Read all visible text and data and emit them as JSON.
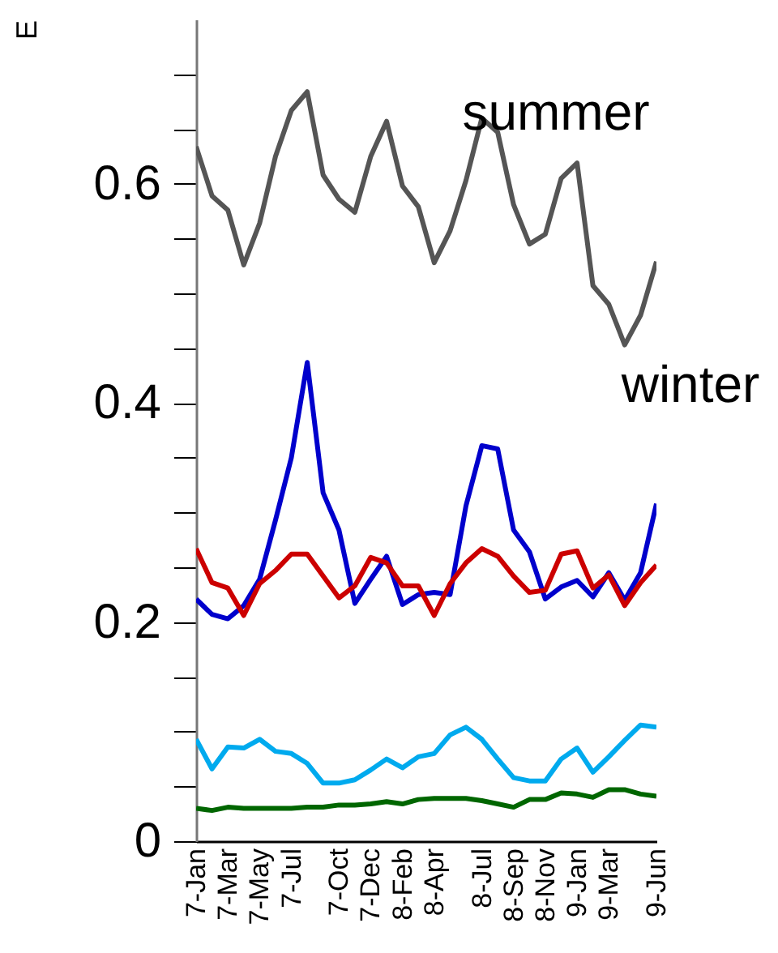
{
  "chart_data": {
    "type": "line",
    "ylabel": "E",
    "categories": [
      "7-Jan",
      null,
      "7-Mar",
      null,
      "7-May",
      null,
      "7-Jul",
      null,
      null,
      "7-Oct",
      null,
      "7-Dec",
      null,
      "8-Feb",
      null,
      "8-Apr",
      null,
      null,
      "8-Jul",
      null,
      "8-Sep",
      null,
      "8-Nov",
      null,
      "9-Jan",
      null,
      "9-Mar",
      null,
      null,
      "9-Jun"
    ],
    "series": [
      {
        "color": "#555555",
        "values": [
          0.634,
          0.589,
          0.576,
          0.526,
          0.564,
          0.625,
          0.667,
          0.684,
          0.608,
          0.586,
          0.574,
          0.625,
          0.657,
          0.598,
          0.579,
          0.528,
          0.557,
          0.603,
          0.66,
          0.647,
          0.581,
          0.545,
          0.554,
          0.605,
          0.619,
          0.507,
          0.49,
          0.453,
          0.48,
          0.529
        ]
      },
      {
        "color": "#0000cc",
        "values": [
          0.221,
          0.207,
          0.203,
          0.215,
          0.239,
          0.293,
          0.35,
          0.437,
          0.318,
          0.284,
          0.217,
          0.239,
          0.26,
          0.216,
          0.225,
          0.227,
          0.225,
          0.306,
          0.361,
          0.358,
          0.284,
          0.264,
          0.221,
          0.232,
          0.238,
          0.223,
          0.245,
          0.22,
          0.245,
          0.308
        ]
      },
      {
        "color": "#cc0000",
        "values": [
          0.267,
          0.236,
          0.231,
          0.206,
          0.235,
          0.247,
          0.262,
          0.262,
          0.242,
          0.222,
          0.233,
          0.259,
          0.254,
          0.233,
          0.233,
          0.206,
          0.235,
          0.254,
          0.267,
          0.26,
          0.242,
          0.227,
          0.229,
          0.262,
          0.265,
          0.231,
          0.243,
          0.215,
          0.236,
          0.252
        ]
      },
      {
        "color": "#00aaee",
        "values": [
          0.093,
          0.066,
          0.086,
          0.085,
          0.093,
          0.082,
          0.08,
          0.071,
          0.053,
          0.053,
          0.056,
          0.065,
          0.075,
          0.067,
          0.077,
          0.08,
          0.097,
          0.104,
          0.093,
          0.075,
          0.058,
          0.055,
          0.055,
          0.075,
          0.085,
          0.063,
          0.077,
          0.092,
          0.106,
          0.104
        ]
      },
      {
        "color": "#006600",
        "values": [
          0.03,
          0.028,
          0.031,
          0.03,
          0.03,
          0.03,
          0.03,
          0.031,
          0.031,
          0.033,
          0.033,
          0.034,
          0.036,
          0.034,
          0.038,
          0.039,
          0.039,
          0.039,
          0.037,
          0.034,
          0.031,
          0.038,
          0.038,
          0.044,
          0.043,
          0.04,
          0.047,
          0.047,
          0.043,
          0.041
        ]
      }
    ],
    "ylim": [
      0,
      0.75
    ],
    "yticks": [
      0,
      {
        "value": 0.05,
        "label": null
      },
      {
        "value": 0.1,
        "label": null
      },
      {
        "value": 0.15,
        "label": null
      },
      0.2,
      {
        "value": 0.25,
        "label": null
      },
      {
        "value": 0.3,
        "label": null
      },
      {
        "value": 0.35,
        "label": null
      },
      0.4,
      {
        "value": 0.45,
        "label": null
      },
      {
        "value": 0.5,
        "label": null
      },
      {
        "value": 0.55,
        "label": null
      },
      0.6,
      {
        "value": 0.65,
        "label": null
      },
      {
        "value": 0.7,
        "label": null
      }
    ],
    "annotations": [
      "summer",
      "winter"
    ],
    "grid": false,
    "marker": "none",
    "line_style": "solid"
  }
}
